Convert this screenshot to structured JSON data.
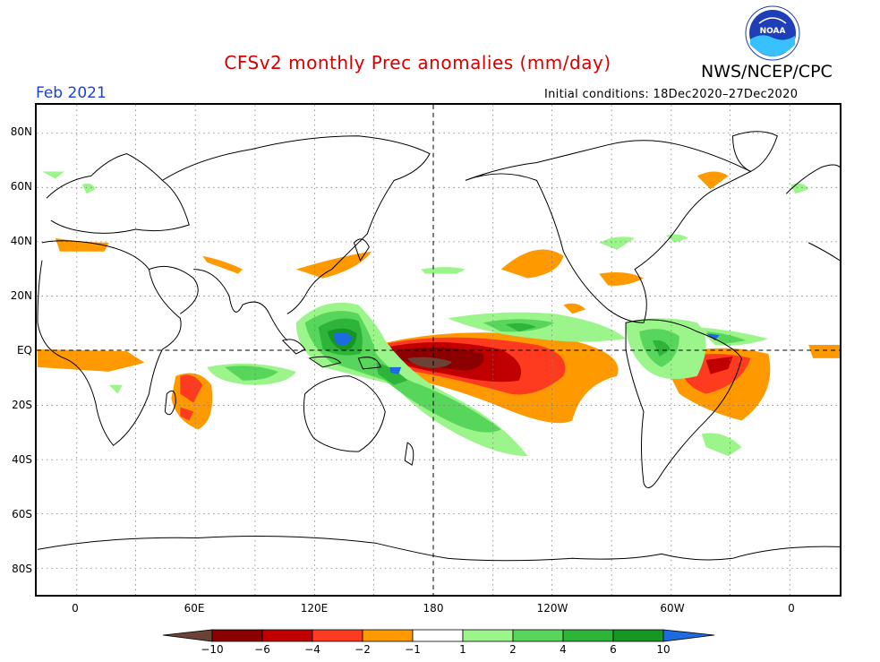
{
  "title": "CFSv2 monthly Prec anomalies (mm/day)",
  "agency": "NWS/NCEP/CPC",
  "logo_text": "NOAA",
  "month_label": "Feb 2021",
  "initial_conditions": "Initial conditions: 18Dec2020–27Dec2020",
  "lat_labels": [
    "80N",
    "60N",
    "40N",
    "20N",
    "EQ",
    "20S",
    "40S",
    "60S",
    "80S"
  ],
  "lon_labels": [
    "0",
    "60E",
    "120E",
    "180",
    "120W",
    "60W",
    "0"
  ],
  "legend": {
    "labels": [
      "−10",
      "−6",
      "−4",
      "−2",
      "−1",
      "1",
      "2",
      "4",
      "6",
      "10"
    ],
    "colors": {
      "below_minus10": "#6b4236",
      "minus10_minus6": "#8b0000",
      "minus6_minus4": "#c00000",
      "minus4_minus2": "#ff3b1f",
      "minus2_minus1": "#ff9900",
      "minus1_1": "#ffffff",
      "1_2": "#9cf58a",
      "2_4": "#58d65b",
      "4_6": "#2fb43a",
      "6_10": "#169622",
      "above_10": "#1c6be0"
    }
  }
}
